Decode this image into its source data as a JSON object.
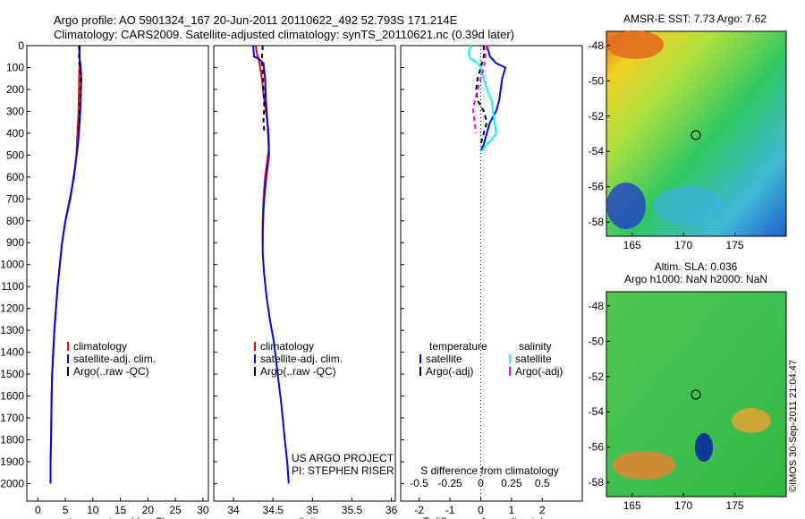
{
  "figure": {
    "title_line1": "Argo profile: AO 5901324_167 20-Jun-2011 20110622_492 52.793S 171.214E",
    "title_line2": "Climatology: CARS2009. Satellite-adjusted climatology: synTS_20110621.nc (0.39d later)",
    "credit": "US ARGO PROJECT",
    "pi": "PI: STEPHEN RISER",
    "stamp": "©IMOS 30-Sep-2011 21:04:47",
    "colors": {
      "climatology": "#ff0000",
      "satellite": "#0000ff",
      "argo": "#000000",
      "sat_s": "#00ffff",
      "argo_s": "#ff00ff"
    }
  },
  "chart_data": [
    {
      "type": "line",
      "xlabel": "temperature (deg C)",
      "ylabel": "",
      "xlim": [
        -2,
        31
      ],
      "ylim": [
        0,
        2080
      ],
      "xticks": [
        0,
        5,
        10,
        15,
        20,
        25,
        30
      ],
      "yticks": [
        0,
        100,
        200,
        300,
        400,
        500,
        600,
        700,
        800,
        900,
        1000,
        1100,
        1200,
        1300,
        1400,
        1500,
        1600,
        1700,
        1800,
        1900,
        2000
      ],
      "legend": {
        "position": "lower-center",
        "entries": [
          "climatology",
          "satellite-adj. clim.",
          "Argo(..raw -QC)"
        ]
      },
      "series": [
        {
          "name": "climatology",
          "color": "#ff0000",
          "x": [
            7.6,
            7.6,
            7.5,
            7.4,
            7.2,
            7.0,
            6.6,
            5.8,
            5.0,
            4.4,
            4.0,
            3.6,
            3.3,
            3.0,
            2.8,
            2.6,
            2.5,
            2.4,
            2.3,
            2.3
          ],
          "y": [
            0,
            50,
            150,
            300,
            400,
            500,
            600,
            700,
            800,
            900,
            1000,
            1100,
            1200,
            1300,
            1400,
            1500,
            1600,
            1800,
            1900,
            2000
          ]
        },
        {
          "name": "satellite-adj. clim.",
          "color": "#0000ff",
          "x": [
            7.5,
            7.6,
            7.8,
            7.9,
            7.8,
            7.6,
            7.3,
            6.8,
            5.9,
            5.0,
            4.4,
            4.0,
            3.6,
            3.3,
            3.0,
            2.8,
            2.6,
            2.5,
            2.4,
            2.3,
            2.3
          ],
          "y": [
            0,
            60,
            100,
            150,
            250,
            350,
            450,
            550,
            700,
            800,
            900,
            1000,
            1100,
            1200,
            1300,
            1400,
            1500,
            1600,
            1800,
            1900,
            2000
          ]
        },
        {
          "name": "Argo(..raw -QC)",
          "color": "#000000",
          "dash": true,
          "x": [
            7.6,
            7.5,
            7.6,
            7.8,
            7.7,
            7.5,
            7.3
          ],
          "y": [
            0,
            50,
            100,
            150,
            250,
            350,
            400
          ]
        }
      ]
    },
    {
      "type": "line",
      "xlabel": "salinity",
      "xlim": [
        33.75,
        36.05
      ],
      "ylim": [
        0,
        2080
      ],
      "xticks": [
        34,
        34.5,
        35,
        35.5,
        36
      ],
      "legend": {
        "position": "lower-center",
        "entries": [
          "climatology",
          "satellite-adj. clim.",
          "Argo(..raw -QC)"
        ]
      },
      "series": [
        {
          "name": "climatology",
          "color": "#ff0000",
          "x": [
            34.28,
            34.3,
            34.33,
            34.36,
            34.38,
            34.41,
            34.44,
            34.45,
            34.43,
            34.4,
            34.38,
            34.37,
            34.37
          ],
          "y": [
            0,
            40,
            80,
            150,
            220,
            300,
            380,
            460,
            520,
            600,
            700,
            800,
            900
          ]
        },
        {
          "name": "satellite-adj. clim.",
          "color": "#0000ff",
          "x": [
            34.25,
            34.26,
            34.32,
            34.38,
            34.4,
            34.41,
            34.42,
            34.43,
            34.44,
            34.45,
            34.43,
            34.4,
            34.38,
            34.37,
            34.37,
            34.39,
            34.42,
            34.46,
            34.51,
            34.56,
            34.61,
            34.65,
            34.68,
            34.7
          ],
          "y": [
            0,
            50,
            60,
            80,
            150,
            250,
            300,
            350,
            420,
            500,
            560,
            650,
            750,
            850,
            950,
            1050,
            1150,
            1250,
            1350,
            1500,
            1650,
            1800,
            1900,
            2000
          ]
        },
        {
          "name": "Argo(..raw -QC)",
          "color": "#000000",
          "dash": true,
          "x": [
            34.37,
            34.36,
            34.37,
            34.38,
            34.39,
            34.38,
            34.39
          ],
          "y": [
            0,
            60,
            120,
            200,
            280,
            340,
            400
          ]
        }
      ]
    },
    {
      "type": "line",
      "xlabel": "T difference from climatology",
      "x2label": "S difference from climatology",
      "xlim": [
        -2.6,
        3.3
      ],
      "ylim": [
        0,
        2080
      ],
      "xticks": [
        -2,
        -1,
        0,
        1,
        2
      ],
      "x2ticks": [
        -0.5,
        -0.25,
        0,
        0.25,
        0.5
      ],
      "zero_line": true,
      "legend": {
        "position": "lower-center",
        "headers": [
          "temperature",
          "salinity"
        ],
        "entries": [
          "satellite",
          "Argo(-adj)",
          "satellite",
          "Argo(-adj)"
        ]
      },
      "series": [
        {
          "name": "temperature satellite",
          "color": "#0000ff",
          "x": [
            0.2,
            0.3,
            0.5,
            0.8,
            0.7,
            0.6,
            0.5,
            0.3,
            0.2,
            0.1,
            0
          ],
          "y": [
            0,
            50,
            80,
            100,
            150,
            250,
            300,
            350,
            400,
            450,
            480
          ]
        },
        {
          "name": "temperature Argo(-adj)",
          "color": "#000000",
          "dash": true,
          "x": [
            0.1,
            0.1,
            0,
            -0.1,
            -0.15,
            -0.1,
            0.1,
            0.2,
            0.1,
            0
          ],
          "y": [
            0,
            50,
            100,
            150,
            200,
            250,
            300,
            350,
            400,
            450
          ]
        },
        {
          "name": "salinity satellite",
          "color": "#00ffff",
          "x": [
            -0.3,
            -0.4,
            -0.35,
            -0.2,
            -0.1,
            0,
            0.1,
            0.2,
            0.35,
            0.4,
            0.45,
            0.5,
            0.35,
            0.2,
            0.05
          ],
          "y": [
            0,
            30,
            60,
            70,
            80,
            100,
            150,
            200,
            250,
            300,
            350,
            400,
            430,
            450,
            480
          ]
        },
        {
          "name": "salinity Argo(-adj)",
          "color": "#ff00ff",
          "dash": true,
          "x": [
            0.2,
            0.15,
            0.1,
            0,
            -0.1,
            -0.2,
            -0.25,
            -0.2,
            -0.15
          ],
          "y": [
            0,
            50,
            100,
            150,
            200,
            250,
            300,
            350,
            400
          ]
        }
      ]
    }
  ],
  "maps": [
    {
      "title_line1": "AMSR-E SST: 7.73 Argo: 7.62",
      "title_line2": "",
      "xticks": [
        165,
        170,
        175
      ],
      "yticks": [
        -48,
        -50,
        -52,
        -54,
        -56,
        -58
      ]
    },
    {
      "title_line1": "Altim. SLA: 0.036",
      "title_line2": "Argo h1000: NaN h2000: NaN",
      "xticks": [
        165,
        170,
        175
      ],
      "yticks": [
        -48,
        -50,
        -52,
        -54,
        -56,
        -58
      ]
    }
  ]
}
